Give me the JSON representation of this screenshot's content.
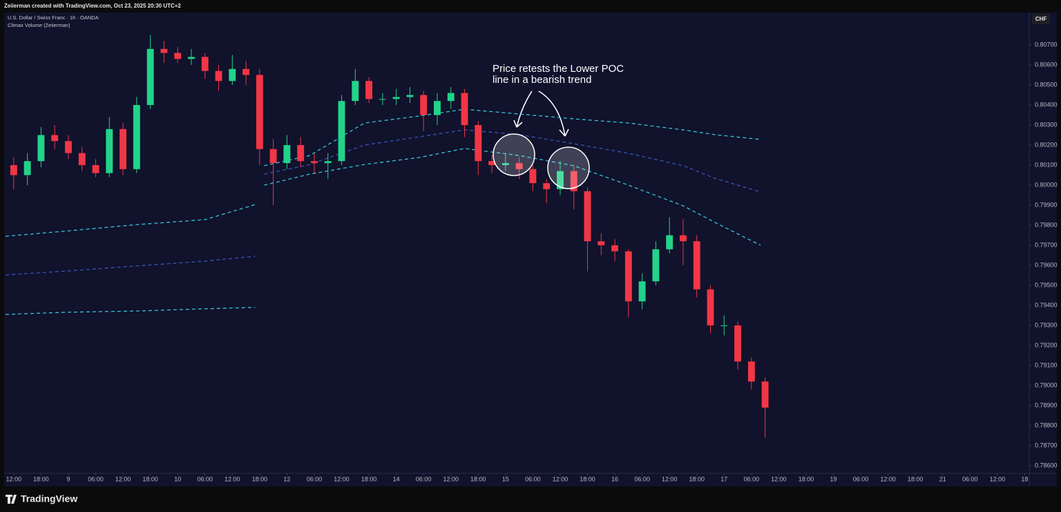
{
  "chart_data": {
    "type": "candlestick",
    "credit": "Zeiierman created with TradingView.com, Oct 23, 2025 20:30 UTC+2",
    "title": "U.S. Dollar / Swiss Franc · 1h · OANDA",
    "indicator": "Climax Volume (Zeiierman)",
    "currency_label": "CHF",
    "brand": "TradingView",
    "annotation": [
      "Price retests the Lower POC",
      "line in a bearish trend"
    ],
    "up_color": "#22d38a",
    "down_color": "#f23645",
    "x": [
      0,
      3,
      6,
      9,
      12,
      15,
      18,
      21,
      24,
      27,
      30,
      33,
      36,
      39,
      42,
      45,
      48,
      51,
      54,
      57,
      60,
      63,
      66,
      69,
      72,
      75,
      78,
      81,
      84,
      87,
      90,
      93,
      96,
      99,
      102,
      105,
      108,
      111,
      114,
      117,
      120,
      123,
      126,
      129,
      132,
      135,
      138,
      141,
      144,
      147,
      150,
      153,
      156,
      159,
      162,
      165
    ],
    "open": [
      0.801,
      0.8005,
      0.8012,
      0.8025,
      0.8022,
      0.8016,
      0.801,
      0.8006,
      0.8028,
      0.8008,
      0.804,
      0.8068,
      0.8066,
      0.8063,
      0.8064,
      0.8057,
      0.8052,
      0.8058,
      0.8055,
      0.8018,
      0.8011,
      0.802,
      0.8012,
      0.8011,
      0.8012,
      0.8042,
      0.8052,
      0.8043,
      0.8043,
      0.8044,
      0.8045,
      0.8035,
      0.8042,
      0.8046,
      0.803,
      0.8012,
      0.801,
      0.8011,
      0.8008,
      0.8001,
      0.7998,
      0.8007,
      0.7997,
      0.7972,
      0.797,
      0.7967,
      0.7942,
      0.7952,
      0.7968,
      0.7975,
      0.7972,
      0.7948,
      0.793,
      0.793,
      0.7912,
      0.7902
    ],
    "high": [
      0.8014,
      0.8016,
      0.8029,
      0.803,
      0.8025,
      0.8019,
      0.8013,
      0.8034,
      0.8031,
      0.8044,
      0.8075,
      0.8072,
      0.8069,
      0.8068,
      0.8066,
      0.806,
      0.8065,
      0.8062,
      0.8058,
      0.8023,
      0.8025,
      0.8024,
      0.8016,
      0.8016,
      0.8045,
      0.8058,
      0.8054,
      0.8046,
      0.8048,
      0.8049,
      0.8047,
      0.8046,
      0.8049,
      0.8048,
      0.8032,
      0.8015,
      0.8016,
      0.8014,
      0.801,
      0.8003,
      0.8012,
      0.801,
      0.7999,
      0.7976,
      0.7973,
      0.7968,
      0.7956,
      0.7972,
      0.7984,
      0.7983,
      0.7975,
      0.795,
      0.7935,
      0.7932,
      0.7914,
      0.7904
    ],
    "low": [
      0.7998,
      0.8,
      0.8009,
      0.8018,
      0.8013,
      0.8007,
      0.8004,
      0.8004,
      0.8005,
      0.8006,
      0.8038,
      0.8061,
      0.8061,
      0.806,
      0.8053,
      0.8047,
      0.805,
      0.805,
      0.801,
      0.799,
      0.8008,
      0.8009,
      0.8006,
      0.8003,
      0.801,
      0.804,
      0.8041,
      0.804,
      0.804,
      0.8041,
      0.8027,
      0.803,
      0.8038,
      0.8024,
      0.8005,
      0.8006,
      0.8007,
      0.8003,
      0.7997,
      0.7991,
      0.7995,
      0.7988,
      0.7957,
      0.7965,
      0.7962,
      0.7934,
      0.7938,
      0.795,
      0.7966,
      0.796,
      0.7944,
      0.7926,
      0.7925,
      0.7908,
      0.7898,
      0.7874
    ],
    "close": [
      0.8005,
      0.8012,
      0.8025,
      0.8022,
      0.8016,
      0.801,
      0.8006,
      0.8028,
      0.8008,
      0.804,
      0.8068,
      0.8066,
      0.8063,
      0.8064,
      0.8057,
      0.8052,
      0.8058,
      0.8055,
      0.8018,
      0.8011,
      0.802,
      0.8012,
      0.8011,
      0.8012,
      0.8042,
      0.8052,
      0.8043,
      0.8043,
      0.8044,
      0.8045,
      0.8035,
      0.8042,
      0.8046,
      0.803,
      0.8012,
      0.801,
      0.8011,
      0.8008,
      0.8001,
      0.7998,
      0.8007,
      0.7997,
      0.7972,
      0.797,
      0.7967,
      0.7942,
      0.7952,
      0.7968,
      0.7975,
      0.7972,
      0.7948,
      0.793,
      0.793,
      0.7912,
      0.7902,
      0.7889
    ],
    "bands": {
      "x": [
        -1.8,
        12,
        27,
        42,
        53,
        54,
        55,
        65,
        77,
        89,
        99,
        111,
        123,
        135,
        147,
        154,
        164
      ],
      "series": [
        {
          "color": "#35c6d8",
          "values": [
            0.79745,
            0.79772,
            0.79803,
            0.79828,
            0.79903,
            null,
            0.80097,
            0.80148,
            0.8031,
            0.80345,
            0.80379,
            0.80355,
            0.80331,
            0.8031,
            0.80276,
            0.80252,
            0.80228
          ]
        },
        {
          "color": "#3656b8",
          "values": [
            0.79552,
            0.79572,
            0.79597,
            0.79621,
            0.79645,
            null,
            0.80055,
            0.80103,
            0.802,
            0.80241,
            0.80276,
            0.80252,
            0.80207,
            0.80159,
            0.80097,
            0.80034,
            0.79966
          ]
        },
        {
          "color": "#35c6d8",
          "values": [
            0.79355,
            0.79366,
            0.79372,
            0.79383,
            0.7939,
            null,
            0.8,
            0.80055,
            0.80103,
            0.80138,
            0.80183,
            0.80148,
            0.80097,
            0.8,
            0.79897,
            0.79814,
            0.797
          ]
        }
      ]
    },
    "xlim": [
      -1.8,
      223
    ],
    "ylim": [
      0.78562,
      0.80862
    ],
    "xticks": [
      {
        "value": 0,
        "label": "12:00"
      },
      {
        "value": 6,
        "label": "18:00"
      },
      {
        "value": 12,
        "label": "9"
      },
      {
        "value": 18,
        "label": "06:00"
      },
      {
        "value": 24,
        "label": "12:00"
      },
      {
        "value": 30,
        "label": "18:00"
      },
      {
        "value": 36,
        "label": "10"
      },
      {
        "value": 42,
        "label": "06:00"
      },
      {
        "value": 48,
        "label": "12:00"
      },
      {
        "value": 54,
        "label": "18:00"
      },
      {
        "value": 60,
        "label": "12"
      },
      {
        "value": 66,
        "label": "06:00"
      },
      {
        "value": 72,
        "label": "12:00"
      },
      {
        "value": 78,
        "label": "18:00"
      },
      {
        "value": 84,
        "label": "14"
      },
      {
        "value": 90,
        "label": "06:00"
      },
      {
        "value": 96,
        "label": "12:00"
      },
      {
        "value": 102,
        "label": "18:00"
      },
      {
        "value": 108,
        "label": "15"
      },
      {
        "value": 114,
        "label": "06:00"
      },
      {
        "value": 120,
        "label": "12:00"
      },
      {
        "value": 126,
        "label": "18:00"
      },
      {
        "value": 132,
        "label": "16"
      },
      {
        "value": 138,
        "label": "06:00"
      },
      {
        "value": 144,
        "label": "12:00"
      },
      {
        "value": 150,
        "label": "18:00"
      },
      {
        "value": 156,
        "label": "17"
      },
      {
        "value": 162,
        "label": "06:00"
      },
      {
        "value": 168,
        "label": "12:00"
      },
      {
        "value": 174,
        "label": "18:00"
      },
      {
        "value": 180,
        "label": "19"
      },
      {
        "value": 186,
        "label": "06:00"
      },
      {
        "value": 192,
        "label": "12:00"
      },
      {
        "value": 198,
        "label": "18:00"
      },
      {
        "value": 204,
        "label": "21"
      },
      {
        "value": 210,
        "label": "06:00"
      },
      {
        "value": 216,
        "label": "12:00"
      },
      {
        "value": 222,
        "label": "18"
      }
    ],
    "yticks": [
      {
        "value": 0.786,
        "label": "0.78600"
      },
      {
        "value": 0.787,
        "label": "0.78700"
      },
      {
        "value": 0.788,
        "label": "0.78800"
      },
      {
        "value": 0.789,
        "label": "0.78900"
      },
      {
        "value": 0.79,
        "label": "0.79000"
      },
      {
        "value": 0.791,
        "label": "0.79100"
      },
      {
        "value": 0.792,
        "label": "0.79200"
      },
      {
        "value": 0.793,
        "label": "0.79300"
      },
      {
        "value": 0.794,
        "label": "0.79400"
      },
      {
        "value": 0.795,
        "label": "0.79500"
      },
      {
        "value": 0.796,
        "label": "0.79600"
      },
      {
        "value": 0.797,
        "label": "0.79700"
      },
      {
        "value": 0.798,
        "label": "0.79800"
      },
      {
        "value": 0.799,
        "label": "0.79900"
      },
      {
        "value": 0.8,
        "label": "0.80000"
      },
      {
        "value": 0.801,
        "label": "0.80100"
      },
      {
        "value": 0.802,
        "label": "0.80200"
      },
      {
        "value": 0.803,
        "label": "0.80300"
      },
      {
        "value": 0.804,
        "label": "0.80400"
      },
      {
        "value": 0.805,
        "label": "0.80500"
      },
      {
        "value": 0.806,
        "label": "0.80600"
      },
      {
        "value": 0.807,
        "label": "0.80700"
      }
    ]
  }
}
